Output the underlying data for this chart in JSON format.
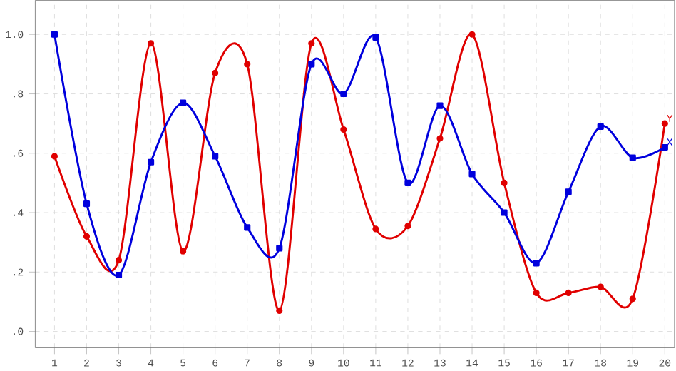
{
  "chart_data": {
    "type": "line",
    "x": [
      1,
      2,
      3,
      4,
      5,
      6,
      7,
      8,
      9,
      10,
      11,
      12,
      13,
      14,
      15,
      16,
      17,
      18,
      19,
      20
    ],
    "series": [
      {
        "name": "Y",
        "color": "#e00000",
        "marker": "circle",
        "values": [
          0.59,
          0.32,
          0.24,
          0.97,
          0.27,
          0.87,
          0.9,
          0.07,
          0.97,
          0.68,
          0.345,
          0.355,
          0.65,
          1.0,
          0.5,
          0.13,
          0.13,
          0.15,
          0.11,
          0.7
        ]
      },
      {
        "name": "X",
        "color": "#0000dd",
        "marker": "square",
        "values": [
          1.0,
          0.43,
          0.19,
          0.57,
          0.77,
          0.59,
          0.35,
          0.28,
          0.9,
          0.8,
          0.99,
          0.5,
          0.76,
          0.53,
          0.4,
          0.23,
          0.47,
          0.69,
          0.585,
          0.62
        ]
      }
    ],
    "xlim": [
      0.4,
      20.3
    ],
    "ylim": [
      -0.055,
      1.115
    ],
    "xticks": [
      1,
      2,
      3,
      4,
      5,
      6,
      7,
      8,
      9,
      10,
      11,
      12,
      13,
      14,
      15,
      16,
      17,
      18,
      19,
      20
    ],
    "yticks": [
      {
        "value": 0,
        "label": ".0"
      },
      {
        "value": 0.2,
        "label": ".2"
      },
      {
        "value": 0.4,
        "label": ".4"
      },
      {
        "value": 0.6,
        "label": ".6"
      },
      {
        "value": 0.8,
        "label": ".8"
      },
      {
        "value": 1.0,
        "label": "1.0"
      }
    ],
    "grid": true,
    "legend": false,
    "line_style": "solid"
  }
}
